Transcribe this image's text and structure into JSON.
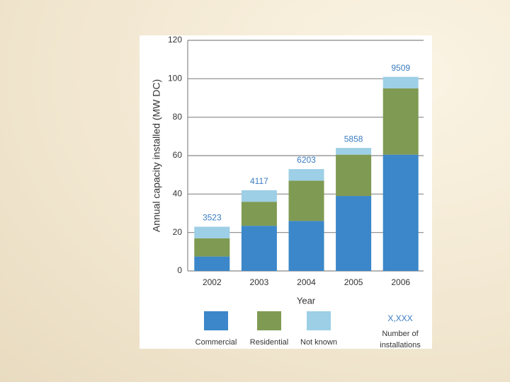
{
  "chart_data": {
    "type": "stacked_bar",
    "y_label": "Annual capacity installed (MW DC)",
    "x_label": "Year",
    "categories": [
      "2002",
      "2003",
      "2004",
      "2005",
      "2006"
    ],
    "series": [
      {
        "name": "Commercial",
        "color": "#3b87c9",
        "values": [
          7.5,
          23.5,
          26,
          39,
          60.5
        ]
      },
      {
        "name": "Residential",
        "color": "#7f9a52",
        "values": [
          9.5,
          12.5,
          21,
          21.5,
          34.5
        ]
      },
      {
        "name": "Not known",
        "color": "#9dcfe6",
        "values": [
          6,
          6,
          6,
          3.5,
          6
        ]
      }
    ],
    "installations": [
      3523,
      4117,
      6203,
      5858,
      9509
    ],
    "installations_legend": {
      "marker": "X,XXX",
      "text": [
        "Number of",
        "installations"
      ]
    },
    "ylim": [
      0,
      120
    ],
    "yticks": [
      0,
      20,
      40,
      60,
      80,
      100,
      120
    ],
    "grid": true
  }
}
